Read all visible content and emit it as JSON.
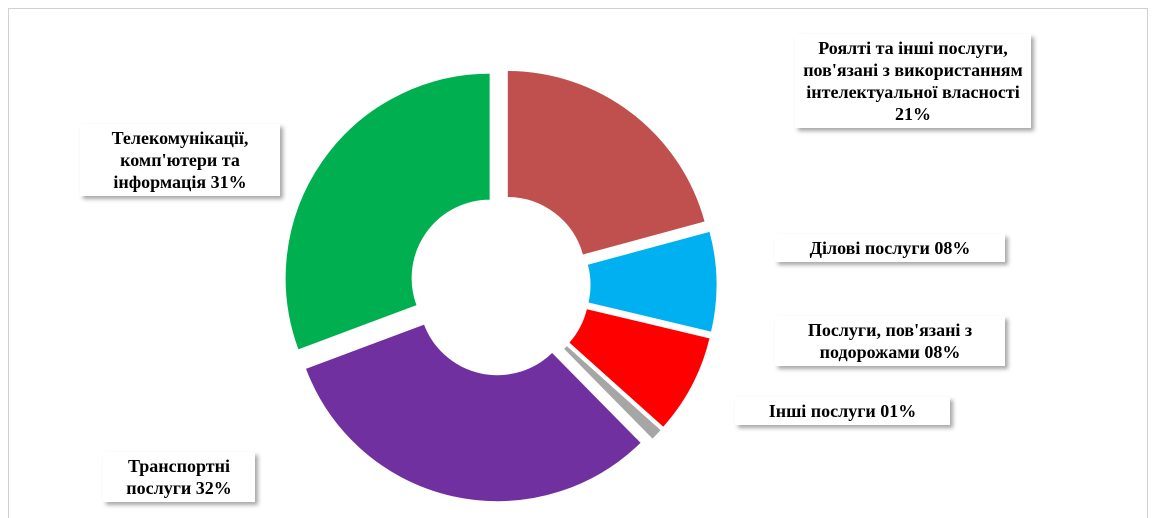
{
  "chart_data": {
    "type": "donut",
    "categories": [
      "Роялті та інші послуги, пов'язані з використанням інтелектуальної власності",
      "Ділові послуги",
      "Послуги, пов'язані з подорожами",
      "Інші послуги",
      "Транспортні послуги",
      "Телекомунікації, комп'ютери та інформація"
    ],
    "values": [
      21,
      8,
      8,
      1,
      32,
      31
    ],
    "value_labels": [
      "21%",
      "08%",
      "08%",
      "01%",
      "32%",
      "31%"
    ],
    "colors": [
      "#c0504d",
      "#00b0f0",
      "#ff0000",
      "#a6a6a6",
      "#7030a0",
      "#00b050"
    ]
  }
}
